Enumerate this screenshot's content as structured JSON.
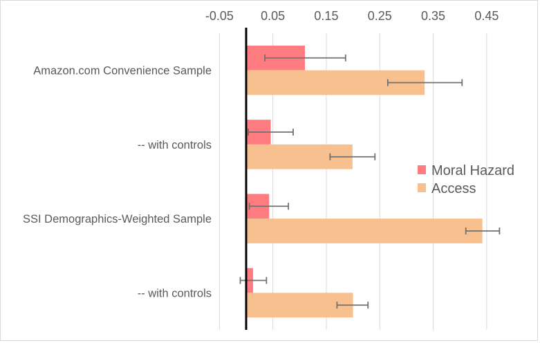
{
  "chart_data": {
    "type": "bar",
    "orientation": "horizontal",
    "title": "",
    "xlabel": "",
    "ylabel": "",
    "categories": [
      "Amazon.com Convenience Sample",
      "-- with controls",
      "SSI Demographics-Weighted Sample",
      "-- with controls"
    ],
    "series": [
      {
        "name": "Moral Hazard",
        "color": "#FF7C80",
        "values": [
          0.11,
          0.046,
          0.043,
          0.013
        ],
        "error_low": [
          0.035,
          0.004,
          0.006,
          -0.011
        ],
        "error_high": [
          0.186,
          0.088,
          0.079,
          0.038
        ]
      },
      {
        "name": "Access",
        "color": "#F8C08F",
        "values": [
          0.334,
          0.199,
          0.442,
          0.2
        ],
        "error_low": [
          0.265,
          0.157,
          0.411,
          0.17
        ],
        "error_high": [
          0.404,
          0.241,
          0.474,
          0.228
        ]
      }
    ],
    "xticks": [
      "-0.05",
      "0.05",
      "0.15",
      "0.25",
      "0.35",
      "0.45"
    ],
    "xtick_values": [
      -0.05,
      0.05,
      0.15,
      0.25,
      0.35,
      0.45
    ],
    "xlim": [
      -0.05,
      0.5
    ],
    "grid": true,
    "axis_position": "top",
    "legend_position": "center-right"
  }
}
